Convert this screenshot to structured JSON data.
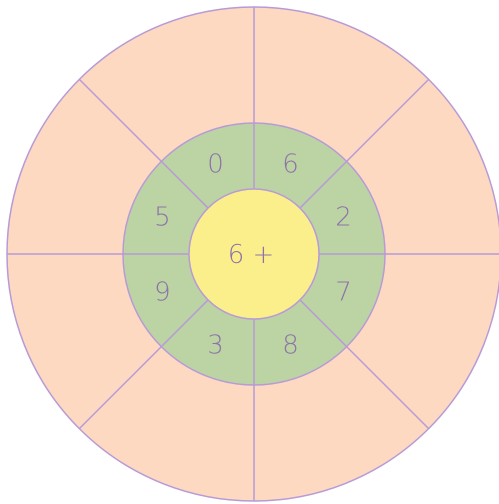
{
  "center_label": "6 +",
  "inner_numbers": [
    "0",
    "6",
    "2",
    "7",
    "8",
    "3",
    "9",
    "5"
  ],
  "colors": {
    "outer_fill": "#fdd9c2",
    "ring_fill": "#bcd4a4",
    "center_fill": "#fbef8c",
    "stroke": "#b79ad6",
    "text": "#8d73a8"
  }
}
